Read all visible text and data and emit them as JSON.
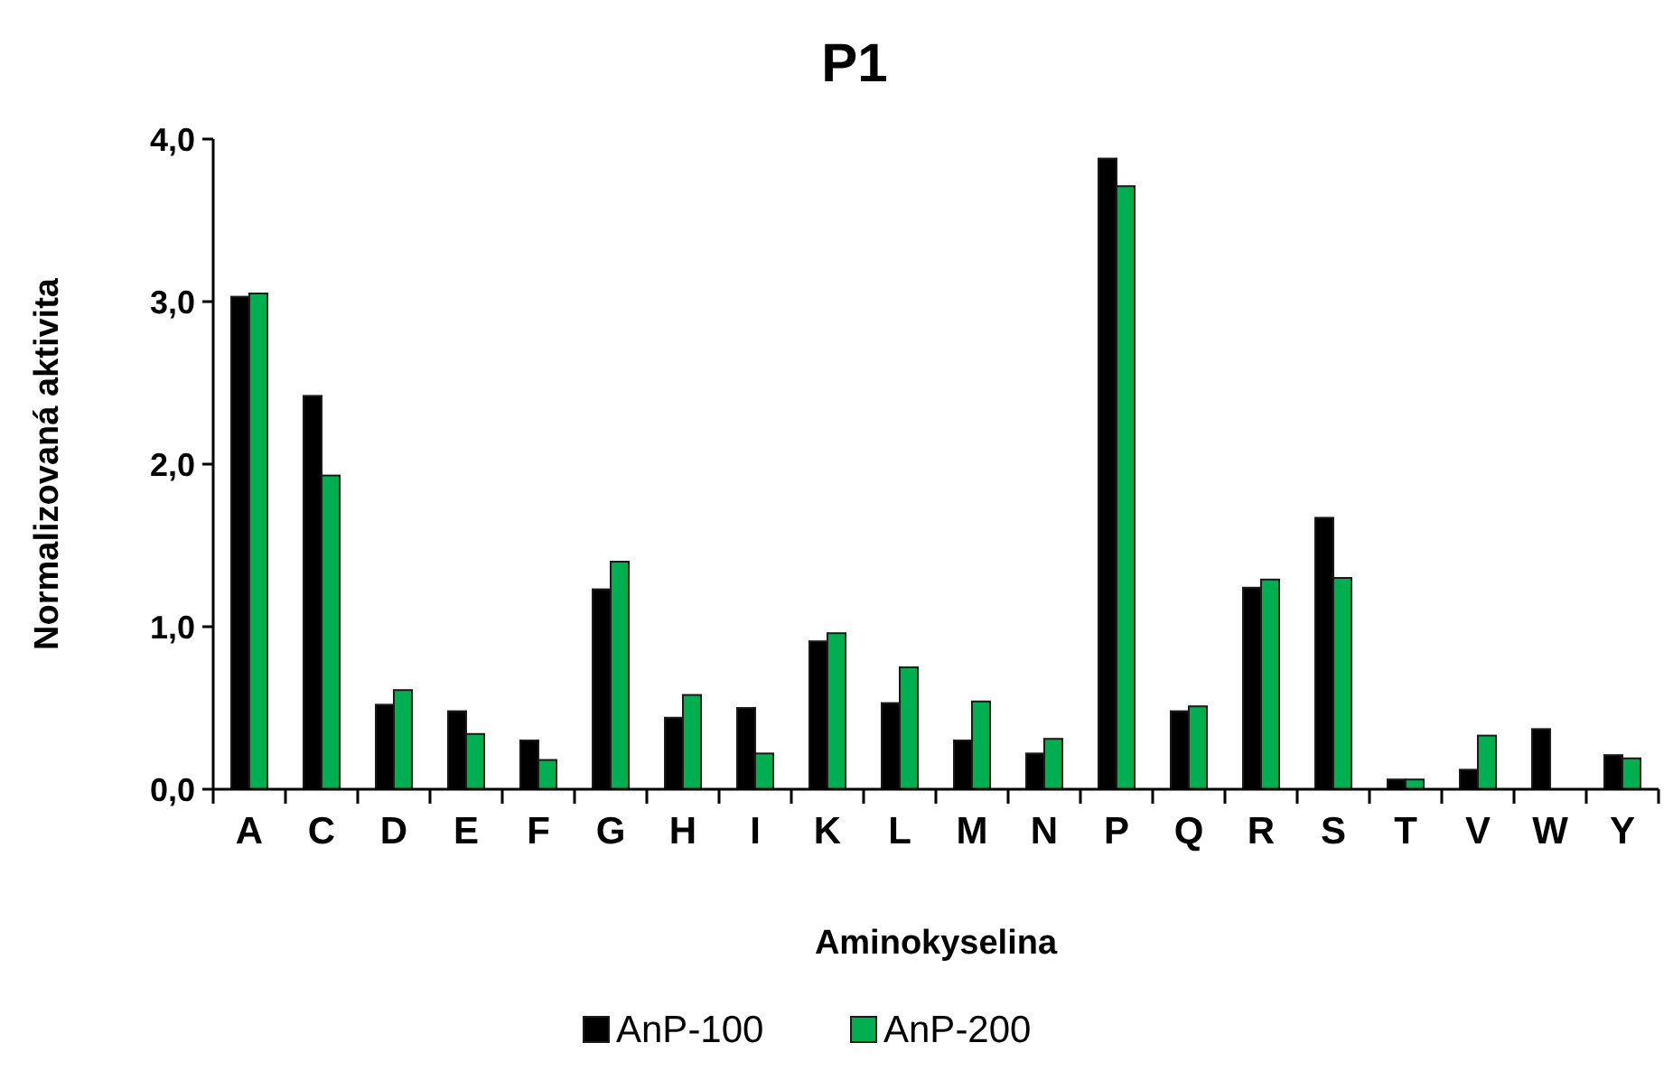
{
  "chart_data": {
    "type": "bar",
    "title": "P1",
    "xlabel": "Aminokyselina",
    "ylabel": "Normalizovaná aktivita",
    "categories": [
      "A",
      "C",
      "D",
      "E",
      "F",
      "G",
      "H",
      "I",
      "K",
      "L",
      "M",
      "N",
      "P",
      "Q",
      "R",
      "S",
      "T",
      "V",
      "W",
      "Y"
    ],
    "series": [
      {
        "name": "AnP-100",
        "color": "#000000",
        "values": [
          3.03,
          2.42,
          0.52,
          0.48,
          0.3,
          1.23,
          0.44,
          0.5,
          0.91,
          0.53,
          0.3,
          0.22,
          3.88,
          0.48,
          1.24,
          1.67,
          0.06,
          0.12,
          0.37,
          0.21
        ]
      },
      {
        "name": "AnP-200",
        "color": "#00b050",
        "values": [
          3.05,
          1.93,
          0.61,
          0.34,
          0.18,
          1.4,
          0.58,
          0.22,
          0.96,
          0.75,
          0.54,
          0.31,
          3.71,
          0.51,
          1.29,
          1.3,
          0.06,
          0.33,
          0,
          0.19
        ]
      }
    ],
    "ylim": [
      0,
      4
    ],
    "yticks": [
      {
        "value": 0,
        "label": "0,0"
      },
      {
        "value": 1,
        "label": "1,0"
      },
      {
        "value": 2,
        "label": "2,0"
      },
      {
        "value": 3,
        "label": "3,0"
      },
      {
        "value": 4,
        "label": "4,0"
      }
    ],
    "grid": false,
    "legend": "bottom"
  }
}
